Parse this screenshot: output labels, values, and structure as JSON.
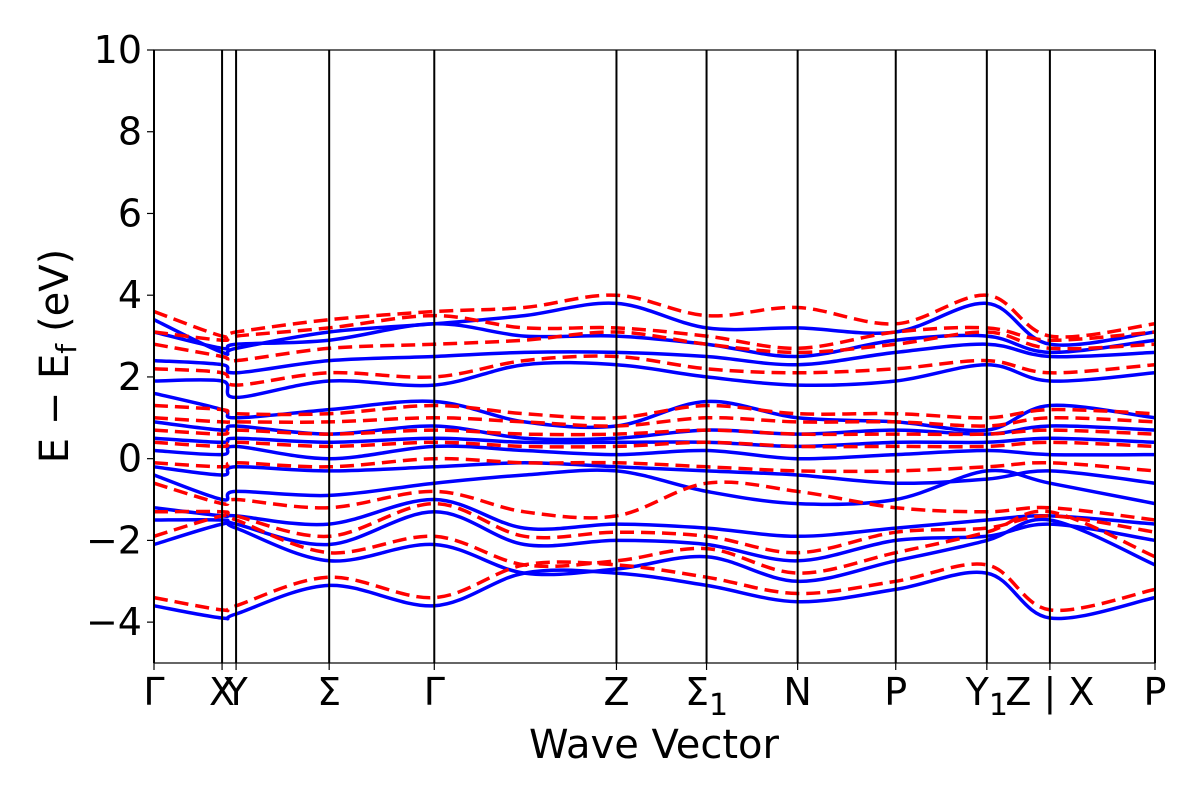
{
  "chart_data": {
    "type": "line",
    "xlabel": "Wave Vector",
    "ylabel": "E − E",
    "ylabel_sub": "f",
    "ylabel_unit": "(eV)",
    "ylim": [
      -5,
      10
    ],
    "yticks": [
      -4,
      -2,
      0,
      2,
      4,
      6,
      8,
      10
    ],
    "ytick_labels": [
      "−4",
      "−2",
      "0",
      "2",
      "4",
      "6",
      "8",
      "10"
    ],
    "xlim": [
      0,
      10
    ],
    "kpoints": [
      {
        "label": "Γ",
        "x": 0.0
      },
      {
        "label": "X",
        "x": 0.68
      },
      {
        "label": "Y",
        "x": 0.82
      },
      {
        "label": "Σ",
        "x": 1.75
      },
      {
        "label": "Γ",
        "x": 2.8
      },
      {
        "label": "Z",
        "x": 4.62
      },
      {
        "label": "Σ",
        "label_sub": "1",
        "x": 5.52
      },
      {
        "label": "N",
        "x": 6.43
      },
      {
        "label": "P",
        "x": 7.41
      },
      {
        "label": "Y",
        "label_sub": "1",
        "x": 8.32
      },
      {
        "label": "Z | X",
        "x": 8.95
      },
      {
        "label": "P",
        "x": 10.0
      }
    ],
    "grid": false,
    "legend": "none",
    "series": [
      {
        "color": "#0000ff",
        "style": "solid",
        "x": [
          0,
          0.68,
          0.82,
          1.75,
          2.8,
          3.7,
          4.62,
          5.52,
          6.43,
          7.41,
          8.32,
          8.95,
          10.0
        ],
        "bands": [
          [
            -3.6,
            -3.9,
            -3.8,
            -3.1,
            -3.6,
            -2.8,
            -2.8,
            -3.1,
            -3.5,
            -3.2,
            -2.8,
            -3.9,
            -3.4
          ],
          [
            -2.1,
            -1.6,
            -1.7,
            -2.5,
            -2.1,
            -2.8,
            -2.7,
            -2.4,
            -3.0,
            -2.5,
            -2.0,
            -1.5,
            -2.6
          ],
          [
            -1.5,
            -1.5,
            -1.6,
            -2.1,
            -1.3,
            -2.1,
            -2.0,
            -2.1,
            -2.5,
            -2.0,
            -1.9,
            -1.6,
            -2.0
          ],
          [
            -1.2,
            -1.4,
            -1.4,
            -1.6,
            -1.0,
            -1.7,
            -1.6,
            -1.7,
            -1.9,
            -1.7,
            -1.5,
            -1.4,
            -1.6
          ],
          [
            -0.4,
            -1.0,
            -0.8,
            -0.9,
            -0.6,
            -0.4,
            -0.3,
            -0.8,
            -1.1,
            -1.0,
            -0.3,
            -0.6,
            -1.1
          ],
          [
            -0.2,
            -0.4,
            -0.2,
            -0.3,
            -0.2,
            -0.1,
            -0.2,
            -0.3,
            -0.4,
            -0.6,
            -0.5,
            -0.3,
            -0.6
          ],
          [
            0.2,
            0.1,
            0.3,
            0.0,
            0.3,
            0.2,
            0.1,
            0.2,
            0.0,
            0.1,
            0.2,
            0.1,
            0.1
          ],
          [
            0.5,
            0.4,
            0.5,
            0.4,
            0.5,
            0.4,
            0.4,
            0.4,
            0.3,
            0.4,
            0.4,
            0.5,
            0.4
          ],
          [
            0.9,
            0.7,
            0.8,
            0.6,
            0.8,
            0.5,
            0.5,
            0.7,
            0.6,
            0.7,
            0.6,
            0.8,
            0.7
          ],
          [
            1.6,
            1.2,
            1.0,
            1.2,
            1.4,
            0.9,
            0.8,
            1.4,
            1.0,
            0.9,
            0.7,
            1.3,
            1.0
          ],
          [
            1.9,
            1.9,
            1.5,
            1.9,
            1.8,
            2.3,
            2.3,
            2.0,
            1.8,
            1.9,
            2.3,
            1.9,
            2.1
          ],
          [
            2.4,
            2.3,
            2.1,
            2.4,
            2.5,
            2.6,
            2.6,
            2.5,
            2.3,
            2.6,
            2.8,
            2.5,
            2.6
          ],
          [
            3.1,
            2.7,
            2.8,
            2.9,
            3.3,
            3.0,
            3.0,
            2.8,
            2.5,
            2.9,
            3.0,
            2.6,
            2.9
          ],
          [
            3.4,
            2.6,
            2.7,
            3.1,
            3.3,
            3.5,
            3.8,
            3.2,
            3.2,
            3.1,
            3.8,
            2.8,
            3.1
          ]
        ]
      },
      {
        "color": "#ff0000",
        "style": "dashed",
        "x": [
          0,
          0.68,
          0.82,
          1.75,
          2.8,
          3.7,
          4.62,
          5.52,
          6.43,
          7.41,
          8.32,
          8.95,
          10.0
        ],
        "bands": [
          [
            -3.4,
            -3.7,
            -3.6,
            -2.9,
            -3.4,
            -2.6,
            -2.6,
            -2.9,
            -3.3,
            -3.0,
            -2.6,
            -3.7,
            -3.2
          ],
          [
            -1.9,
            -1.4,
            -1.5,
            -2.3,
            -1.9,
            -2.6,
            -2.5,
            -2.2,
            -2.8,
            -2.3,
            -1.8,
            -1.3,
            -2.4
          ],
          [
            -1.3,
            -1.3,
            -1.4,
            -1.9,
            -1.1,
            -1.9,
            -1.8,
            -1.9,
            -2.3,
            -1.8,
            -1.7,
            -1.4,
            -1.8
          ],
          [
            -0.6,
            -1.1,
            -1.0,
            -1.2,
            -0.8,
            -1.3,
            -1.4,
            -0.6,
            -0.8,
            -1.2,
            -1.3,
            -1.2,
            -1.5
          ],
          [
            -0.1,
            -0.2,
            -0.1,
            -0.2,
            0.0,
            -0.1,
            -0.1,
            -0.2,
            -0.3,
            -0.3,
            -0.2,
            -0.1,
            -0.3
          ],
          [
            0.4,
            0.3,
            0.4,
            0.3,
            0.4,
            0.3,
            0.3,
            0.4,
            0.3,
            0.3,
            0.3,
            0.4,
            0.3
          ],
          [
            0.7,
            0.6,
            0.7,
            0.6,
            0.7,
            0.6,
            0.6,
            0.7,
            0.6,
            0.6,
            0.6,
            0.7,
            0.6
          ],
          [
            1.0,
            0.9,
            0.9,
            0.9,
            1.0,
            0.9,
            0.8,
            1.0,
            0.9,
            0.9,
            0.8,
            1.0,
            0.9
          ],
          [
            1.3,
            1.2,
            1.1,
            1.1,
            1.3,
            1.1,
            1.0,
            1.3,
            1.1,
            1.1,
            1.0,
            1.2,
            1.1
          ],
          [
            2.2,
            2.1,
            1.8,
            2.1,
            2.0,
            2.4,
            2.5,
            2.2,
            2.1,
            2.2,
            2.4,
            2.1,
            2.3
          ],
          [
            2.8,
            2.5,
            2.4,
            2.7,
            2.8,
            2.9,
            3.1,
            2.8,
            2.6,
            2.8,
            3.1,
            2.7,
            2.8
          ],
          [
            3.1,
            2.9,
            3.0,
            3.2,
            3.5,
            3.2,
            3.2,
            3.0,
            2.7,
            3.1,
            3.2,
            2.9,
            3.1
          ],
          [
            3.6,
            3.0,
            3.1,
            3.4,
            3.6,
            3.7,
            4.0,
            3.5,
            3.7,
            3.3,
            4.0,
            3.0,
            3.3
          ]
        ]
      }
    ]
  }
}
